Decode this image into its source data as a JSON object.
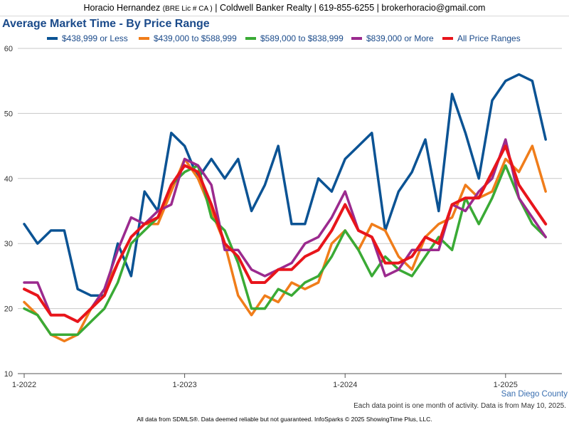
{
  "header": {
    "name": "Horacio Hernandez",
    "license": "(BRE Lic # CA )",
    "company": "| Coldwell Banker Realty | 619-855-6255 | brokerhoracio@gmail.com"
  },
  "region": "San Diego County",
  "note": "Each data point is one month of activity. Data is from May 10, 2025.",
  "footer": "All data from SDMLS®. Data deemed reliable but not guaranteed. InfoSparks © 2025 ShowingTime Plus, LLC.",
  "chart_data": {
    "type": "line",
    "title": "Average Market Time - By Price Range",
    "xlabel": "",
    "ylabel": "",
    "ylim": [
      10,
      60
    ],
    "yticks": [
      10,
      20,
      30,
      40,
      50,
      60
    ],
    "grid": true,
    "legend_position": "top",
    "x": [
      "2022-01",
      "2022-02",
      "2022-03",
      "2022-04",
      "2022-05",
      "2022-06",
      "2022-07",
      "2022-08",
      "2022-09",
      "2022-10",
      "2022-11",
      "2022-12",
      "2023-01",
      "2023-02",
      "2023-03",
      "2023-04",
      "2023-05",
      "2023-06",
      "2023-07",
      "2023-08",
      "2023-09",
      "2023-10",
      "2023-11",
      "2023-12",
      "2024-01",
      "2024-02",
      "2024-03",
      "2024-04",
      "2024-05",
      "2024-06",
      "2024-07",
      "2024-08",
      "2024-09",
      "2024-10",
      "2024-11",
      "2024-12",
      "2025-01",
      "2025-02",
      "2025-03",
      "2025-04"
    ],
    "xtick_labels": [
      {
        "index": 0,
        "label": "1-2022"
      },
      {
        "index": 12,
        "label": "1-2023"
      },
      {
        "index": 24,
        "label": "1-2024"
      },
      {
        "index": 36,
        "label": "1-2025"
      }
    ],
    "series": [
      {
        "name": "$438,999 or Less",
        "color": "#0b5394",
        "values": [
          33,
          30,
          32,
          32,
          23,
          22,
          22,
          30,
          25,
          38,
          35,
          47,
          45,
          40,
          43,
          40,
          43,
          35,
          39,
          45,
          33,
          33,
          40,
          38,
          43,
          45,
          47,
          32,
          38,
          41,
          46,
          35,
          53,
          47,
          40,
          52,
          55,
          56,
          55,
          46
        ]
      },
      {
        "name": "$439,000 to $588,999",
        "color": "#f07d1a",
        "values": [
          21,
          19,
          16,
          15,
          16,
          20,
          23,
          27,
          31,
          33,
          33,
          38,
          43,
          40,
          35,
          30,
          22,
          19,
          22,
          21,
          24,
          23,
          24,
          30,
          32,
          29,
          33,
          32,
          28,
          26,
          31,
          33,
          34,
          39,
          37,
          38,
          43,
          41,
          45,
          38
        ]
      },
      {
        "name": "$589,000 to $838,999",
        "color": "#3aaa35",
        "values": [
          20,
          19,
          16,
          16,
          16,
          18,
          20,
          24,
          30,
          32,
          34,
          39,
          41,
          42,
          34,
          32,
          27,
          20,
          20,
          23,
          22,
          24,
          25,
          28,
          32,
          29,
          25,
          28,
          26,
          25,
          28,
          31,
          29,
          37,
          33,
          37,
          42,
          37,
          33,
          31
        ]
      },
      {
        "name": "$839,000 or More",
        "color": "#9b2a8e",
        "values": [
          24,
          24,
          19,
          19,
          18,
          20,
          23,
          29,
          34,
          33,
          35,
          36,
          43,
          42,
          39,
          29,
          29,
          26,
          25,
          26,
          27,
          30,
          31,
          34,
          38,
          32,
          31,
          25,
          26,
          29,
          29,
          29,
          36,
          35,
          38,
          40,
          46,
          37,
          34,
          31
        ]
      },
      {
        "name": "All Price Ranges",
        "color": "#e8151b",
        "values": [
          23,
          22,
          19,
          19,
          18,
          20,
          22,
          27,
          31,
          33,
          34,
          39,
          42,
          41,
          36,
          30,
          28,
          24,
          24,
          26,
          26,
          28,
          29,
          32,
          36,
          32,
          31,
          27,
          27,
          28,
          31,
          30,
          36,
          37,
          37,
          41,
          45,
          39,
          36,
          33
        ]
      }
    ]
  }
}
